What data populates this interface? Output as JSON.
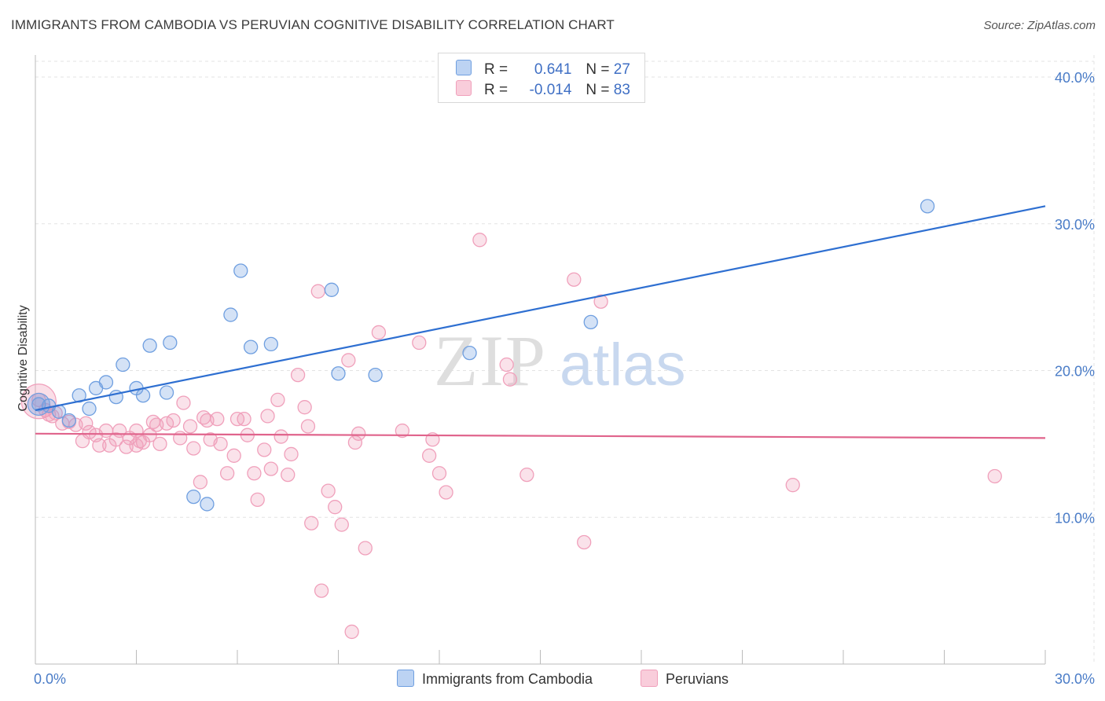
{
  "title": "IMMIGRANTS FROM CAMBODIA VS PERUVIAN COGNITIVE DISABILITY CORRELATION CHART",
  "source": "Source: ZipAtlas.com",
  "watermark": {
    "zip": "ZIP",
    "atlas": "atlas"
  },
  "legend_top": [
    {
      "r_label": "R =",
      "r_value": "0.641",
      "n_label": "N =",
      "n_value": "27"
    },
    {
      "r_label": "R =",
      "r_value": "-0.014",
      "n_label": "N =",
      "n_value": "83"
    }
  ],
  "legend_bottom": [
    "Immigrants from Cambodia",
    "Peruvians"
  ],
  "chart_data": {
    "type": "scatter",
    "title": "IMMIGRANTS FROM CAMBODIA VS PERUVIAN COGNITIVE DISABILITY CORRELATION CHART",
    "xlabel": "",
    "ylabel": "Cognitive Disability",
    "xlim": [
      0,
      30
    ],
    "ylim": [
      0,
      41.5
    ],
    "x_tick_labels": [
      "0.0%",
      "30.0%"
    ],
    "y_ticks": [
      10,
      20,
      30,
      40
    ],
    "y_tick_labels": [
      "10.0%",
      "20.0%",
      "30.0%",
      "40.0%"
    ],
    "grid": true,
    "legend_position": "top-center",
    "colors": {
      "cambodia": "#6f9fe0",
      "cambodia_line": "#2e6fd1",
      "peruvians": "#f0a0bb",
      "peruvians_line": "#e0648c"
    },
    "series": [
      {
        "name": "Immigrants from Cambodia",
        "r": 0.641,
        "n": 27,
        "trend": [
          [
            0,
            17.3
          ],
          [
            30,
            31.2
          ]
        ],
        "points": [
          [
            0.1,
            17.7
          ],
          [
            0.4,
            17.6
          ],
          [
            0.7,
            17.2
          ],
          [
            1.0,
            16.6
          ],
          [
            1.3,
            18.3
          ],
          [
            1.6,
            17.4
          ],
          [
            1.8,
            18.8
          ],
          [
            2.1,
            19.2
          ],
          [
            2.4,
            18.2
          ],
          [
            2.6,
            20.4
          ],
          [
            3.0,
            18.8
          ],
          [
            3.2,
            18.3
          ],
          [
            3.4,
            21.7
          ],
          [
            3.9,
            18.5
          ],
          [
            4.0,
            21.9
          ],
          [
            4.7,
            11.4
          ],
          [
            5.1,
            10.9
          ],
          [
            5.8,
            23.8
          ],
          [
            6.1,
            26.8
          ],
          [
            6.4,
            21.6
          ],
          [
            7.0,
            21.8
          ],
          [
            8.8,
            25.5
          ],
          [
            9.0,
            19.8
          ],
          [
            10.1,
            19.7
          ],
          [
            12.9,
            21.2
          ],
          [
            16.5,
            23.3
          ],
          [
            26.5,
            31.2
          ]
        ]
      },
      {
        "name": "Peruvians",
        "r": -0.014,
        "n": 83,
        "trend": [
          [
            0,
            15.7
          ],
          [
            30,
            15.4
          ]
        ],
        "points": [
          [
            0.1,
            18.0
          ],
          [
            0.3,
            17.3
          ],
          [
            0.4,
            17.0
          ],
          [
            0.6,
            17.1
          ],
          [
            0.8,
            16.4
          ],
          [
            1.0,
            16.5
          ],
          [
            1.2,
            16.3
          ],
          [
            1.4,
            15.2
          ],
          [
            1.6,
            15.8
          ],
          [
            1.8,
            15.6
          ],
          [
            1.9,
            14.9
          ],
          [
            2.1,
            15.9
          ],
          [
            2.2,
            14.9
          ],
          [
            2.4,
            15.3
          ],
          [
            2.5,
            15.9
          ],
          [
            2.7,
            14.8
          ],
          [
            2.8,
            15.4
          ],
          [
            3.0,
            15.9
          ],
          [
            3.1,
            15.2
          ],
          [
            3.2,
            15.1
          ],
          [
            3.4,
            15.6
          ],
          [
            3.5,
            16.5
          ],
          [
            3.6,
            16.3
          ],
          [
            3.7,
            15.0
          ],
          [
            3.9,
            16.4
          ],
          [
            4.1,
            16.6
          ],
          [
            4.3,
            15.4
          ],
          [
            4.4,
            17.8
          ],
          [
            4.6,
            16.2
          ],
          [
            4.7,
            14.7
          ],
          [
            4.9,
            12.4
          ],
          [
            5.0,
            16.8
          ],
          [
            5.2,
            15.3
          ],
          [
            5.4,
            16.7
          ],
          [
            5.5,
            15.0
          ],
          [
            5.7,
            13.0
          ],
          [
            5.9,
            14.2
          ],
          [
            6.0,
            16.7
          ],
          [
            6.2,
            16.7
          ],
          [
            6.3,
            15.6
          ],
          [
            6.5,
            13.0
          ],
          [
            6.6,
            11.2
          ],
          [
            6.8,
            14.6
          ],
          [
            6.9,
            16.9
          ],
          [
            7.0,
            13.3
          ],
          [
            7.2,
            18.0
          ],
          [
            7.3,
            15.5
          ],
          [
            7.5,
            12.9
          ],
          [
            7.6,
            14.3
          ],
          [
            7.8,
            19.7
          ],
          [
            8.0,
            17.5
          ],
          [
            8.1,
            16.2
          ],
          [
            8.2,
            9.6
          ],
          [
            8.4,
            25.4
          ],
          [
            8.5,
            5.0
          ],
          [
            8.7,
            11.8
          ],
          [
            8.9,
            10.7
          ],
          [
            9.1,
            9.5
          ],
          [
            9.3,
            20.7
          ],
          [
            9.4,
            2.2
          ],
          [
            9.5,
            15.1
          ],
          [
            9.6,
            15.7
          ],
          [
            9.8,
            7.9
          ],
          [
            10.2,
            22.6
          ],
          [
            10.9,
            15.9
          ],
          [
            11.4,
            21.9
          ],
          [
            11.7,
            14.2
          ],
          [
            11.8,
            15.3
          ],
          [
            12.0,
            13.0
          ],
          [
            12.2,
            11.7
          ],
          [
            13.2,
            28.9
          ],
          [
            14.0,
            20.4
          ],
          [
            14.1,
            19.4
          ],
          [
            14.6,
            12.9
          ],
          [
            16.0,
            26.2
          ],
          [
            16.3,
            8.3
          ],
          [
            16.8,
            24.7
          ],
          [
            22.5,
            12.2
          ],
          [
            28.5,
            12.8
          ],
          [
            3.0,
            14.9
          ],
          [
            5.1,
            16.6
          ],
          [
            1.5,
            16.4
          ],
          [
            0.5,
            16.9
          ]
        ]
      }
    ]
  }
}
